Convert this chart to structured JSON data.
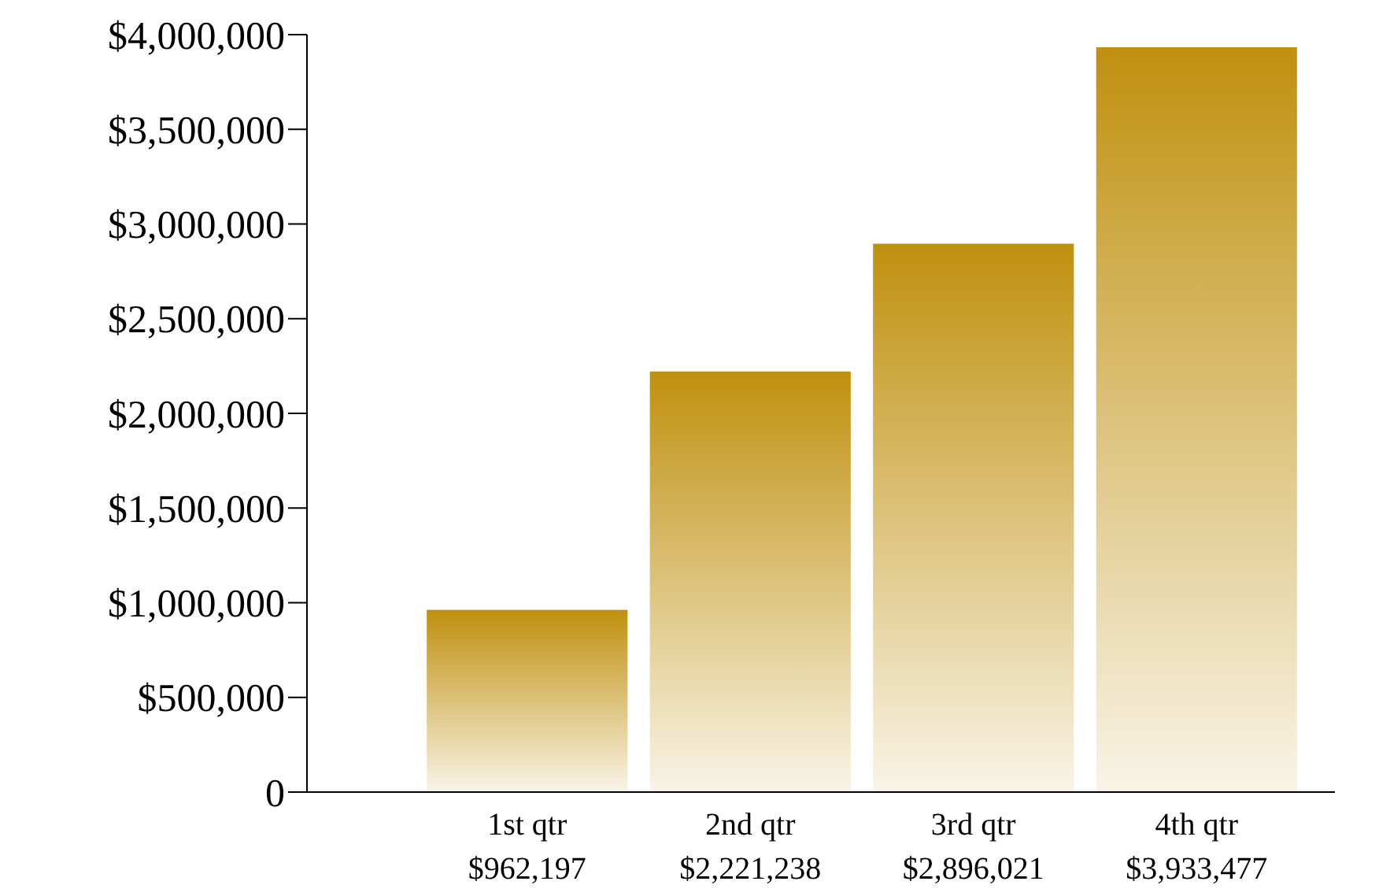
{
  "chart_data": {
    "type": "bar",
    "categories": [
      "1st qtr",
      "2nd qtr",
      "3rd qtr",
      "4th qtr"
    ],
    "values": [
      962197,
      2221238,
      2896021,
      3933477
    ],
    "value_labels": [
      "$962,197",
      "$2,221,238",
      "$2,896,021",
      "$3,933,477"
    ],
    "color": "#c0900f",
    "ylim": [
      0,
      4000000
    ],
    "yticks": [
      0,
      {
        "value": 500000,
        "label": "$500,000"
      },
      {
        "value": 1000000,
        "label": "$1,000,000"
      },
      {
        "value": 1500000,
        "label": "$1,500,000"
      },
      {
        "value": 2000000,
        "label": "$2,000,000"
      },
      {
        "value": 2500000,
        "label": "$2,500,000"
      },
      {
        "value": 3000000,
        "label": "$3,000,000"
      },
      {
        "value": 3500000,
        "label": "$3,500,000"
      },
      {
        "value": 4000000,
        "label": "$4,000,000"
      }
    ]
  }
}
